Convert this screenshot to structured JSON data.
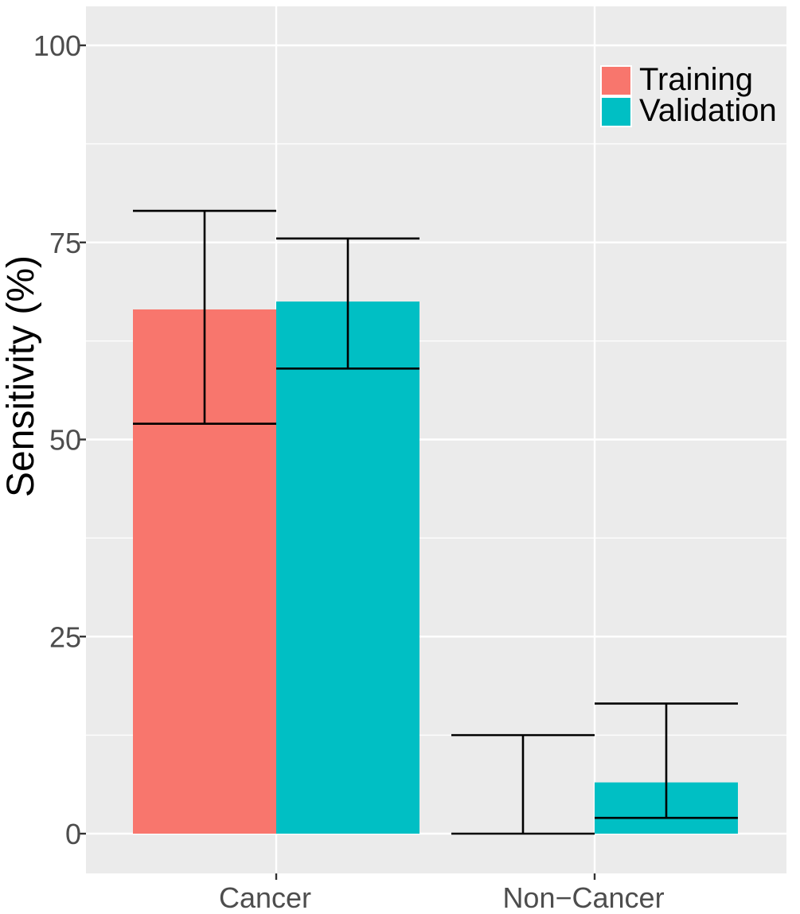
{
  "chart_data": {
    "type": "bar",
    "categories": [
      "Cancer",
      "Non−Cancer"
    ],
    "series": [
      {
        "name": "Training",
        "values": [
          66.5,
          0
        ],
        "error_low": [
          52,
          0
        ],
        "error_high": [
          79,
          12.5
        ],
        "color": "#F8766D"
      },
      {
        "name": "Validation",
        "values": [
          67.5,
          6.5
        ],
        "error_low": [
          59,
          2
        ],
        "error_high": [
          75.5,
          16.5
        ],
        "color": "#00BFC4"
      }
    ],
    "xlabel": "",
    "ylabel": "Sensitivity (%)",
    "ylim": [
      0,
      100
    ],
    "yticks": [
      0,
      25,
      50,
      75,
      100
    ],
    "grid": true,
    "legend_position": "top-right",
    "panel_background": "#EBEBEB",
    "grid_color": "#FFFFFF",
    "error_bar_color": "#000000"
  }
}
